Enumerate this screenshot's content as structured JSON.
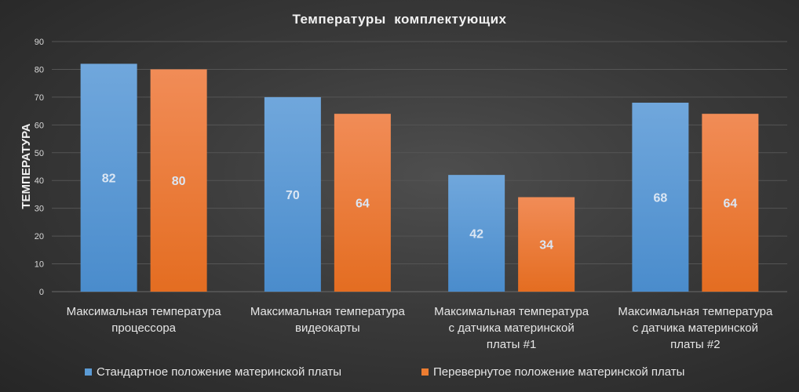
{
  "chart_data": {
    "type": "bar",
    "title": "Температуры  комплектующих",
    "ylabel": "ТЕМПЕРАТУРА",
    "xlabel": "",
    "ylim": [
      0,
      90
    ],
    "yticks": [
      "0",
      "10",
      "20",
      "30",
      "40",
      "50",
      "60",
      "70",
      "80",
      "90"
    ],
    "grid": true,
    "legend_position": "bottom",
    "categories": [
      [
        "Максимальная температура",
        "процессора"
      ],
      [
        "Максимальная температура",
        "видеокарты"
      ],
      [
        "Максимальная температура",
        "с датчика материнской",
        "платы #1"
      ],
      [
        "Максимальная температура",
        "с датчика материнской",
        "платы #2"
      ]
    ],
    "series": [
      {
        "name": "Стандартное положение материнской платы",
        "values": [
          82,
          70,
          42,
          68
        ],
        "color": "#5b9bd5",
        "color_top": "#70a7dc",
        "color_bottom": "#4a8ccc"
      },
      {
        "name": "Перевернутое положение материнской платы",
        "values": [
          80,
          64,
          34,
          64
        ],
        "color": "#ed7d31",
        "color_top": "#f18c57",
        "color_bottom": "#e46d21"
      }
    ]
  }
}
